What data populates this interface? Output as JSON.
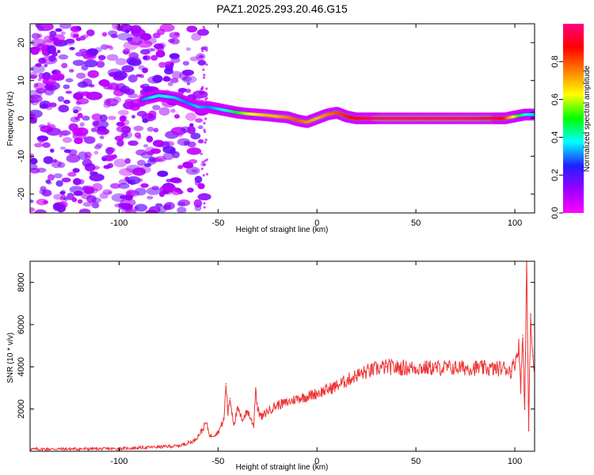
{
  "chart_data": [
    {
      "type": "heatmap",
      "title": "PAZ1.2025.293.20.46.G15",
      "xlabel": "Height of straight line (km)",
      "ylabel": "Frequency (Hz)",
      "xlim": [
        -145,
        110
      ],
      "ylim": [
        -25,
        25
      ],
      "xticks": [
        -100,
        -50,
        0,
        50,
        100
      ],
      "yticks": [
        -20,
        -10,
        0,
        10,
        20
      ],
      "colorbar": {
        "label": "Normalized spectral amplitude",
        "range": [
          0,
          1
        ],
        "ticks": [
          "0.0",
          "0.2",
          "0.4",
          "0.6",
          "0.8"
        ],
        "colormap": [
          "#ff00ff",
          "#9900ff",
          "#2020ff",
          "#00ffff",
          "#00ff00",
          "#ffff00",
          "#ff8000",
          "#ff0000",
          "#ff0080"
        ]
      },
      "ridge": {
        "x": [
          -88,
          -80,
          -72,
          -65,
          -60,
          -55,
          -50,
          -45,
          -40,
          -35,
          -30,
          -25,
          -20,
          -15,
          -10,
          -5,
          0,
          5,
          10,
          15,
          20,
          25,
          30,
          40,
          50,
          60,
          70,
          80,
          90,
          95,
          100,
          105,
          110
        ],
        "y": [
          5,
          6,
          5.5,
          4,
          3,
          3,
          2.5,
          2,
          1.5,
          1.2,
          1,
          0.8,
          0.5,
          0.3,
          -0.5,
          -1,
          0,
          1,
          1.5,
          0.5,
          0,
          0,
          0,
          0,
          0,
          0,
          0,
          0,
          0,
          0,
          0.5,
          1,
          1
        ],
        "amplitude": [
          0.3,
          0.4,
          0.35,
          0.3,
          0.35,
          0.3,
          0.35,
          0.4,
          0.5,
          0.6,
          0.65,
          0.7,
          0.7,
          0.75,
          0.8,
          0.75,
          0.7,
          0.75,
          0.8,
          0.85,
          0.9,
          0.95,
          1,
          1,
          1,
          1,
          1,
          1,
          0.95,
          0.85,
          0.6,
          0.4,
          0.35
        ]
      }
    },
    {
      "type": "line",
      "xlabel": "Height of straight line (km)",
      "ylabel": "SNR (10 * v/v)",
      "xlim": [
        -145,
        110
      ],
      "ylim": [
        0,
        9000
      ],
      "xticks": [
        -100,
        -50,
        0,
        50,
        100
      ],
      "yticks": [
        2000,
        4000,
        6000,
        8000
      ],
      "series": [
        {
          "name": "SNR",
          "color": "#ee3333",
          "x": [
            -145,
            -100,
            -70,
            -62,
            -58,
            -56,
            -54,
            -50,
            -47,
            -46,
            -45,
            -44,
            -42,
            -40,
            -38,
            -35,
            -32,
            -31,
            -30,
            -28,
            -25,
            -20,
            -15,
            -10,
            -5,
            0,
            5,
            10,
            15,
            20,
            25,
            30,
            35,
            40,
            50,
            60,
            70,
            80,
            90,
            95,
            98,
            100,
            102,
            103,
            104,
            105,
            106,
            107,
            108,
            109,
            110
          ],
          "y": [
            100,
            120,
            250,
            500,
            1000,
            1350,
            700,
            900,
            1500,
            3200,
            1800,
            2500,
            1300,
            2000,
            1500,
            1900,
            1200,
            3000,
            2000,
            1600,
            1900,
            2200,
            2300,
            2500,
            2600,
            2750,
            2900,
            3100,
            3350,
            3600,
            3750,
            3900,
            4000,
            3950,
            3950,
            3950,
            3950,
            3950,
            3900,
            3950,
            3800,
            4200,
            5000,
            3000,
            5500,
            2000,
            9000,
            1000,
            6500,
            4500,
            3800
          ]
        }
      ]
    }
  ]
}
